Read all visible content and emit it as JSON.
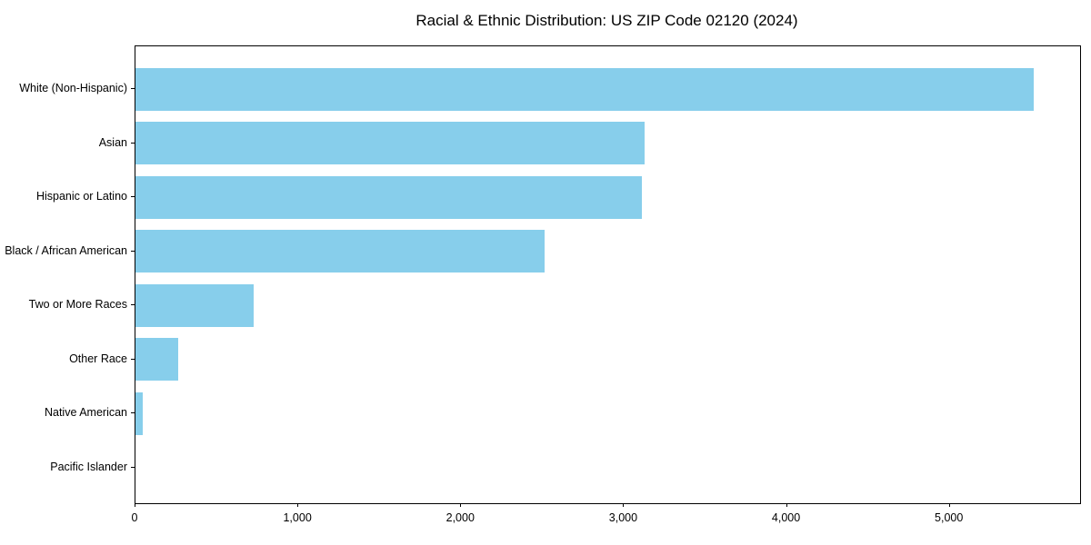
{
  "chart_data": {
    "type": "bar",
    "orientation": "horizontal",
    "title": "Racial & Ethnic Distribution: US ZIP Code 02120 (2024)",
    "categories": [
      "White (Non-Hispanic)",
      "Asian",
      "Hispanic or Latino",
      "Black / African American",
      "Two or More Races",
      "Other Race",
      "Native American",
      "Pacific Islander"
    ],
    "values": [
      5516,
      3128,
      3112,
      2514,
      723,
      265,
      47,
      0
    ],
    "xlabel": "",
    "ylabel": "",
    "xlim": [
      0,
      5800
    ],
    "x_ticks": [
      0,
      1000,
      2000,
      3000,
      4000,
      5000
    ],
    "x_tick_labels": [
      "0",
      "1,000",
      "2,000",
      "3,000",
      "4,000",
      "5,000"
    ],
    "grid": false,
    "legend": null,
    "colors": {
      "bar": "#87CEEB",
      "axis": "#000000",
      "text": "#000000",
      "background": "#ffffff"
    }
  }
}
